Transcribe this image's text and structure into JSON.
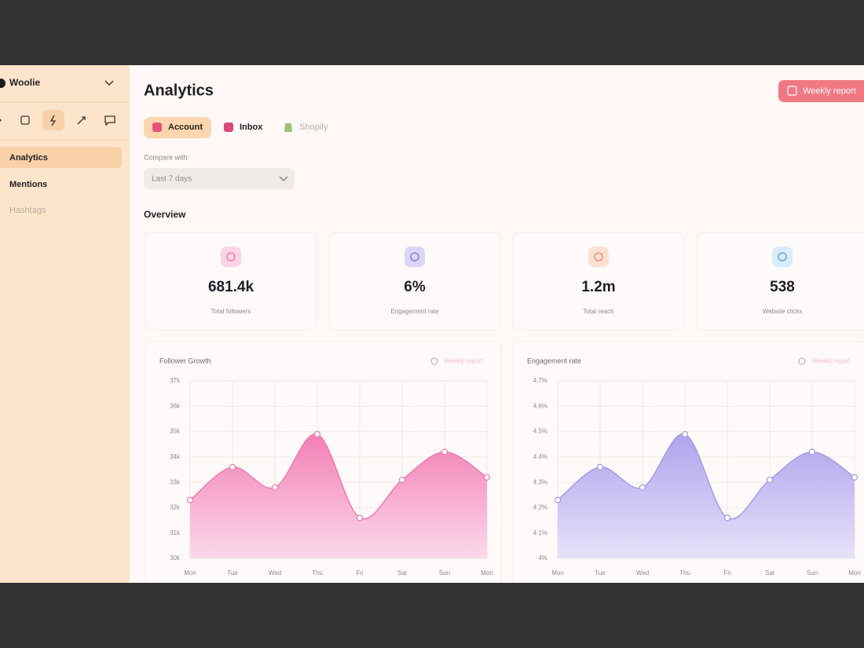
{
  "sidebar": {
    "workspace": "Woolie",
    "nav": [
      "Analytics",
      "Mentions",
      "Hashtags"
    ]
  },
  "header": {
    "title": "Analytics",
    "button": "Weekly report"
  },
  "tabs": [
    "Account",
    "Inbox",
    "Shopify"
  ],
  "compare": {
    "label": "Compare with:",
    "value": "Last 7 days"
  },
  "overview": {
    "title": "Overview",
    "stats": [
      {
        "value": "681.4k",
        "label": "Total followers"
      },
      {
        "value": "6%",
        "label": "Engagement rate"
      },
      {
        "value": "1.2m",
        "label": "Total reach"
      },
      {
        "value": "538",
        "label": "Website clicks"
      }
    ]
  },
  "chart_data": [
    {
      "type": "area",
      "title": "Follower Growth",
      "link": "Weekly report",
      "categories": [
        "Mon",
        "Tue",
        "Wed",
        "Thu",
        "Fri",
        "Sat",
        "Sun",
        "Mon"
      ],
      "values": [
        32.3,
        33.6,
        32.8,
        34.9,
        31.6,
        33.1,
        34.2,
        33.2
      ],
      "color": "#f07ab0",
      "ylim": [
        30,
        37
      ],
      "yticks": [
        {
          "value": 30,
          "label": "30k"
        },
        {
          "value": 31,
          "label": "31k"
        },
        {
          "value": 32,
          "label": "32k"
        },
        {
          "value": 33,
          "label": "33k"
        },
        {
          "value": 34,
          "label": "34k"
        },
        {
          "value": 35,
          "label": "35k"
        },
        {
          "value": 36,
          "label": "36k"
        },
        {
          "value": 37,
          "label": "37k"
        }
      ],
      "grid": true
    },
    {
      "type": "area",
      "title": "Engagement rate",
      "link": "Weekly report",
      "categories": [
        "Mon",
        "Tue",
        "Wed",
        "Thu",
        "Fri",
        "Sat",
        "Sun",
        "Mon"
      ],
      "values": [
        4.23,
        4.36,
        4.28,
        4.49,
        4.16,
        4.31,
        4.42,
        4.32
      ],
      "color": "#a59be6",
      "ylim": [
        4,
        4.7
      ],
      "yticks": [
        {
          "value": 4,
          "label": "4%"
        },
        {
          "value": 4.1,
          "label": "4.1%"
        },
        {
          "value": 4.2,
          "label": "4.2%"
        },
        {
          "value": 4.3,
          "label": "4.3%"
        },
        {
          "value": 4.4,
          "label": "4.4%"
        },
        {
          "value": 4.5,
          "label": "4.5%"
        },
        {
          "value": 4.6,
          "label": "4.6%"
        },
        {
          "value": 4.7,
          "label": "4.7%"
        }
      ],
      "grid": true
    }
  ]
}
